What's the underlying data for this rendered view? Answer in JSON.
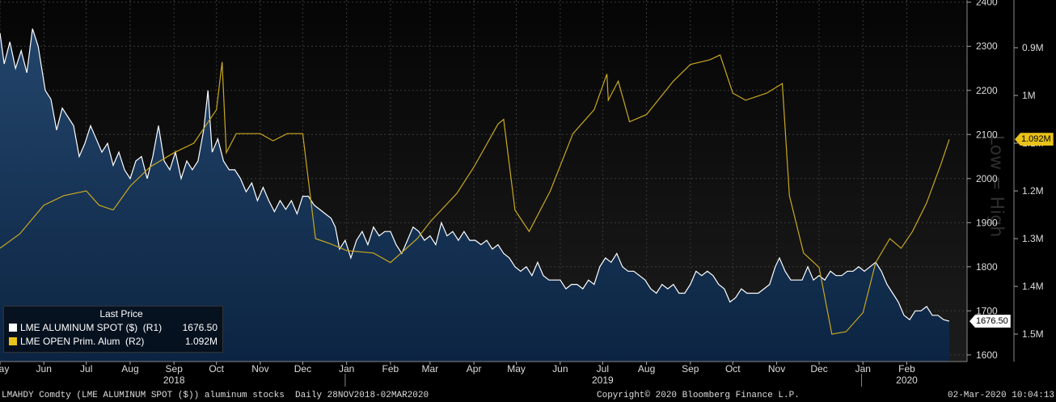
{
  "chart_data": {
    "type": "line",
    "title": "",
    "xlabel": "",
    "ylabel": "",
    "x_range": [
      "2018-05-01",
      "2020-03-02"
    ],
    "x_ticks": [
      {
        "label": "May",
        "date": "2018-05-01"
      },
      {
        "label": "Jun",
        "date": "2018-06-01"
      },
      {
        "label": "Jul",
        "date": "2018-07-01"
      },
      {
        "label": "Aug",
        "date": "2018-08-01"
      },
      {
        "label": "Sep",
        "date": "2018-09-01"
      },
      {
        "label": "Oct",
        "date": "2018-10-01"
      },
      {
        "label": "Nov",
        "date": "2018-11-01"
      },
      {
        "label": "Dec",
        "date": "2018-12-01"
      },
      {
        "label": "Jan",
        "date": "2019-01-01"
      },
      {
        "label": "Feb",
        "date": "2019-02-01"
      },
      {
        "label": "Mar",
        "date": "2019-03-01"
      },
      {
        "label": "Apr",
        "date": "2019-04-01"
      },
      {
        "label": "May",
        "date": "2019-05-01"
      },
      {
        "label": "Jun",
        "date": "2019-06-01"
      },
      {
        "label": "Jul",
        "date": "2019-07-01"
      },
      {
        "label": "Aug",
        "date": "2019-08-01"
      },
      {
        "label": "Sep",
        "date": "2019-09-01"
      },
      {
        "label": "Oct",
        "date": "2019-10-01"
      },
      {
        "label": "Nov",
        "date": "2019-11-01"
      },
      {
        "label": "Dec",
        "date": "2019-12-01"
      },
      {
        "label": "Jan",
        "date": "2020-01-01"
      },
      {
        "label": "Feb",
        "date": "2020-02-01"
      }
    ],
    "year_labels": [
      {
        "label": "2018",
        "date": "2018-09-01"
      },
      {
        "label": "2019",
        "date": "2019-07-01"
      },
      {
        "label": "2020",
        "date": "2020-02-01"
      }
    ],
    "year_dividers": [
      "2018-12-31",
      "2019-12-31"
    ],
    "axis_r1": {
      "ylim": [
        1585,
        2405
      ],
      "ticks": [
        1600,
        1700,
        1800,
        1900,
        2000,
        2100,
        2200,
        2300,
        2400
      ],
      "tick_labels": [
        "1600",
        "1700",
        "1800",
        "1900",
        "2000",
        "2100",
        "2200",
        "2300",
        "2400"
      ]
    },
    "axis_r2": {
      "inverted": true,
      "note": "Low = High",
      "ylim_top_to_bottom": [
        800000,
        1557500
      ],
      "ticks": [
        900000,
        1000000,
        1100000,
        1200000,
        1300000,
        1400000,
        1500000
      ],
      "tick_labels": [
        "0.9M",
        "1M",
        "1.1M",
        "1.2M",
        "1.3M",
        "1.4M",
        "1.5M"
      ]
    },
    "legend_title": "Last Price",
    "series": [
      {
        "name": "LME ALUMINUM SPOT ($)",
        "axis": "R1",
        "color": "#ffffff",
        "area_fill": "#0d2847",
        "legend_name": "LME ALUMINUM SPOT ($)  (R1)",
        "last_value": "1676.50",
        "points": [
          [
            "2018-05-01",
            2330
          ],
          [
            "2018-05-04",
            2260
          ],
          [
            "2018-05-08",
            2310
          ],
          [
            "2018-05-12",
            2250
          ],
          [
            "2018-05-16",
            2290
          ],
          [
            "2018-05-20",
            2240
          ],
          [
            "2018-05-24",
            2340
          ],
          [
            "2018-05-28",
            2300
          ],
          [
            "2018-06-02",
            2200
          ],
          [
            "2018-06-06",
            2180
          ],
          [
            "2018-06-10",
            2110
          ],
          [
            "2018-06-14",
            2160
          ],
          [
            "2018-06-18",
            2140
          ],
          [
            "2018-06-22",
            2120
          ],
          [
            "2018-06-26",
            2050
          ],
          [
            "2018-06-30",
            2080
          ],
          [
            "2018-07-04",
            2120
          ],
          [
            "2018-07-08",
            2090
          ],
          [
            "2018-07-12",
            2060
          ],
          [
            "2018-07-16",
            2080
          ],
          [
            "2018-07-20",
            2030
          ],
          [
            "2018-07-24",
            2060
          ],
          [
            "2018-07-28",
            2020
          ],
          [
            "2018-08-01",
            2000
          ],
          [
            "2018-08-05",
            2040
          ],
          [
            "2018-08-09",
            2050
          ],
          [
            "2018-08-13",
            2000
          ],
          [
            "2018-08-17",
            2050
          ],
          [
            "2018-08-21",
            2120
          ],
          [
            "2018-08-25",
            2040
          ],
          [
            "2018-08-29",
            2020
          ],
          [
            "2018-09-02",
            2060
          ],
          [
            "2018-09-06",
            2000
          ],
          [
            "2018-09-10",
            2040
          ],
          [
            "2018-09-14",
            2020
          ],
          [
            "2018-09-18",
            2040
          ],
          [
            "2018-09-22",
            2110
          ],
          [
            "2018-09-25",
            2200
          ],
          [
            "2018-09-28",
            2060
          ],
          [
            "2018-10-02",
            2090
          ],
          [
            "2018-10-06",
            2040
          ],
          [
            "2018-10-10",
            2020
          ],
          [
            "2018-10-14",
            2020
          ],
          [
            "2018-10-18",
            2000
          ],
          [
            "2018-10-22",
            1970
          ],
          [
            "2018-10-26",
            1990
          ],
          [
            "2018-10-30",
            1950
          ],
          [
            "2018-11-03",
            1980
          ],
          [
            "2018-11-07",
            1950
          ],
          [
            "2018-11-11",
            1925
          ],
          [
            "2018-11-15",
            1950
          ],
          [
            "2018-11-19",
            1930
          ],
          [
            "2018-11-23",
            1950
          ],
          [
            "2018-11-27",
            1920
          ],
          [
            "2018-12-01",
            1960
          ],
          [
            "2018-12-05",
            1960
          ],
          [
            "2018-12-09",
            1940
          ],
          [
            "2018-12-13",
            1930
          ],
          [
            "2018-12-17",
            1920
          ],
          [
            "2018-12-21",
            1910
          ],
          [
            "2018-12-24",
            1890
          ],
          [
            "2018-12-27",
            1840
          ],
          [
            "2018-12-31",
            1860
          ],
          [
            "2019-01-04",
            1820
          ],
          [
            "2019-01-08",
            1860
          ],
          [
            "2019-01-12",
            1880
          ],
          [
            "2019-01-16",
            1850
          ],
          [
            "2019-01-20",
            1890
          ],
          [
            "2019-01-24",
            1870
          ],
          [
            "2019-01-28",
            1880
          ],
          [
            "2019-02-01",
            1880
          ],
          [
            "2019-02-05",
            1850
          ],
          [
            "2019-02-09",
            1830
          ],
          [
            "2019-02-13",
            1860
          ],
          [
            "2019-02-17",
            1890
          ],
          [
            "2019-02-21",
            1880
          ],
          [
            "2019-02-25",
            1860
          ],
          [
            "2019-03-01",
            1870
          ],
          [
            "2019-03-05",
            1850
          ],
          [
            "2019-03-09",
            1900
          ],
          [
            "2019-03-13",
            1870
          ],
          [
            "2019-03-17",
            1880
          ],
          [
            "2019-03-21",
            1860
          ],
          [
            "2019-03-25",
            1880
          ],
          [
            "2019-03-29",
            1860
          ],
          [
            "2019-04-02",
            1860
          ],
          [
            "2019-04-06",
            1850
          ],
          [
            "2019-04-10",
            1860
          ],
          [
            "2019-04-14",
            1840
          ],
          [
            "2019-04-18",
            1850
          ],
          [
            "2019-04-22",
            1830
          ],
          [
            "2019-04-26",
            1820
          ],
          [
            "2019-04-30",
            1800
          ],
          [
            "2019-05-04",
            1790
          ],
          [
            "2019-05-08",
            1800
          ],
          [
            "2019-05-12",
            1780
          ],
          [
            "2019-05-16",
            1810
          ],
          [
            "2019-05-20",
            1780
          ],
          [
            "2019-05-24",
            1770
          ],
          [
            "2019-05-28",
            1770
          ],
          [
            "2019-06-01",
            1770
          ],
          [
            "2019-06-05",
            1750
          ],
          [
            "2019-06-09",
            1760
          ],
          [
            "2019-06-13",
            1760
          ],
          [
            "2019-06-17",
            1750
          ],
          [
            "2019-06-21",
            1770
          ],
          [
            "2019-06-25",
            1760
          ],
          [
            "2019-06-29",
            1800
          ],
          [
            "2019-07-03",
            1820
          ],
          [
            "2019-07-07",
            1810
          ],
          [
            "2019-07-11",
            1830
          ],
          [
            "2019-07-15",
            1800
          ],
          [
            "2019-07-19",
            1790
          ],
          [
            "2019-07-23",
            1790
          ],
          [
            "2019-07-27",
            1780
          ],
          [
            "2019-07-31",
            1770
          ],
          [
            "2019-08-04",
            1750
          ],
          [
            "2019-08-08",
            1740
          ],
          [
            "2019-08-12",
            1760
          ],
          [
            "2019-08-16",
            1750
          ],
          [
            "2019-08-20",
            1760
          ],
          [
            "2019-08-24",
            1740
          ],
          [
            "2019-08-28",
            1740
          ],
          [
            "2019-09-01",
            1760
          ],
          [
            "2019-09-05",
            1790
          ],
          [
            "2019-09-09",
            1780
          ],
          [
            "2019-09-13",
            1790
          ],
          [
            "2019-09-17",
            1780
          ],
          [
            "2019-09-21",
            1760
          ],
          [
            "2019-09-25",
            1750
          ],
          [
            "2019-09-29",
            1720
          ],
          [
            "2019-10-03",
            1730
          ],
          [
            "2019-10-07",
            1750
          ],
          [
            "2019-10-11",
            1740
          ],
          [
            "2019-10-15",
            1740
          ],
          [
            "2019-10-19",
            1740
          ],
          [
            "2019-10-23",
            1750
          ],
          [
            "2019-10-27",
            1760
          ],
          [
            "2019-10-31",
            1800
          ],
          [
            "2019-11-03",
            1820
          ],
          [
            "2019-11-07",
            1790
          ],
          [
            "2019-11-11",
            1770
          ],
          [
            "2019-11-15",
            1770
          ],
          [
            "2019-11-19",
            1770
          ],
          [
            "2019-11-23",
            1800
          ],
          [
            "2019-11-27",
            1770
          ],
          [
            "2019-12-01",
            1780
          ],
          [
            "2019-12-05",
            1770
          ],
          [
            "2019-12-09",
            1790
          ],
          [
            "2019-12-13",
            1780
          ],
          [
            "2019-12-17",
            1780
          ],
          [
            "2019-12-21",
            1790
          ],
          [
            "2019-12-25",
            1790
          ],
          [
            "2019-12-29",
            1800
          ],
          [
            "2020-01-02",
            1790
          ],
          [
            "2020-01-06",
            1800
          ],
          [
            "2020-01-10",
            1810
          ],
          [
            "2020-01-14",
            1790
          ],
          [
            "2020-01-18",
            1760
          ],
          [
            "2020-01-22",
            1740
          ],
          [
            "2020-01-26",
            1720
          ],
          [
            "2020-01-30",
            1690
          ],
          [
            "2020-02-03",
            1680
          ],
          [
            "2020-02-07",
            1700
          ],
          [
            "2020-02-11",
            1700
          ],
          [
            "2020-02-15",
            1710
          ],
          [
            "2020-02-19",
            1690
          ],
          [
            "2020-02-23",
            1690
          ],
          [
            "2020-02-27",
            1680
          ],
          [
            "2020-03-02",
            1676.5
          ]
        ]
      },
      {
        "name": "LME OPEN Prim. Alum",
        "axis": "R2",
        "color": "#c9a820",
        "legend_name": "LME OPEN Prim. Alum  (R2)",
        "last_value": "1.092M",
        "points": [
          [
            "2018-05-01",
            1320000
          ],
          [
            "2018-05-15",
            1290000
          ],
          [
            "2018-06-01",
            1230000
          ],
          [
            "2018-06-15",
            1210000
          ],
          [
            "2018-07-01",
            1200000
          ],
          [
            "2018-07-10",
            1230000
          ],
          [
            "2018-07-20",
            1240000
          ],
          [
            "2018-08-01",
            1190000
          ],
          [
            "2018-08-15",
            1150000
          ],
          [
            "2018-09-01",
            1120000
          ],
          [
            "2018-09-15",
            1100000
          ],
          [
            "2018-10-01",
            1030000
          ],
          [
            "2018-10-05",
            930000
          ],
          [
            "2018-10-08",
            1120000
          ],
          [
            "2018-10-15",
            1080000
          ],
          [
            "2018-11-01",
            1080000
          ],
          [
            "2018-11-10",
            1095000
          ],
          [
            "2018-11-20",
            1080000
          ],
          [
            "2018-12-01",
            1080000
          ],
          [
            "2018-12-10",
            1300000
          ],
          [
            "2018-12-20",
            1310000
          ],
          [
            "2019-01-01",
            1325000
          ],
          [
            "2019-01-20",
            1330000
          ],
          [
            "2019-02-01",
            1350000
          ],
          [
            "2019-02-20",
            1300000
          ],
          [
            "2019-03-01",
            1265000
          ],
          [
            "2019-03-20",
            1205000
          ],
          [
            "2019-04-01",
            1150000
          ],
          [
            "2019-04-18",
            1060000
          ],
          [
            "2019-04-22",
            1050000
          ],
          [
            "2019-04-30",
            1240000
          ],
          [
            "2019-05-10",
            1285000
          ],
          [
            "2019-05-25",
            1200000
          ],
          [
            "2019-06-10",
            1080000
          ],
          [
            "2019-06-25",
            1030000
          ],
          [
            "2019-07-04",
            955000
          ],
          [
            "2019-07-05",
            1010000
          ],
          [
            "2019-07-12",
            970000
          ],
          [
            "2019-07-20",
            1055000
          ],
          [
            "2019-08-01",
            1040000
          ],
          [
            "2019-08-20",
            970000
          ],
          [
            "2019-09-01",
            935000
          ],
          [
            "2019-09-15",
            925000
          ],
          [
            "2019-09-22",
            915000
          ],
          [
            "2019-10-01",
            995000
          ],
          [
            "2019-10-10",
            1010000
          ],
          [
            "2019-10-25",
            995000
          ],
          [
            "2019-11-05",
            975000
          ],
          [
            "2019-11-10",
            1210000
          ],
          [
            "2019-11-20",
            1330000
          ],
          [
            "2019-12-01",
            1360000
          ],
          [
            "2019-12-10",
            1500000
          ],
          [
            "2019-12-20",
            1495000
          ],
          [
            "2020-01-01",
            1455000
          ],
          [
            "2020-01-10",
            1350000
          ],
          [
            "2020-01-20",
            1300000
          ],
          [
            "2020-01-28",
            1320000
          ],
          [
            "2020-02-05",
            1285000
          ],
          [
            "2020-02-15",
            1225000
          ],
          [
            "2020-02-25",
            1145000
          ],
          [
            "2020-03-02",
            1092000
          ]
        ]
      }
    ]
  },
  "legend": {
    "title": "Last Price",
    "rows": [
      {
        "name": "LME ALUMINUM SPOT ($)  (R1)",
        "value": "1676.50",
        "color": "#ffffff"
      },
      {
        "name": "LME OPEN Prim. Alum  (R2)",
        "value": "1.092M",
        "color": "#e9c21a"
      }
    ]
  },
  "tags": {
    "r1_last": "1676.50",
    "r2_last": "1.092M"
  },
  "footer": {
    "left": "LMAHDY Comdty (LME ALUMINUM SPOT ($)) aluminum stocks  Daily 28NOV2018-02MAR2020",
    "center": "Copyright© 2020 Bloomberg Finance L.P.",
    "right": "02-Mar-2020 10:04:13"
  }
}
